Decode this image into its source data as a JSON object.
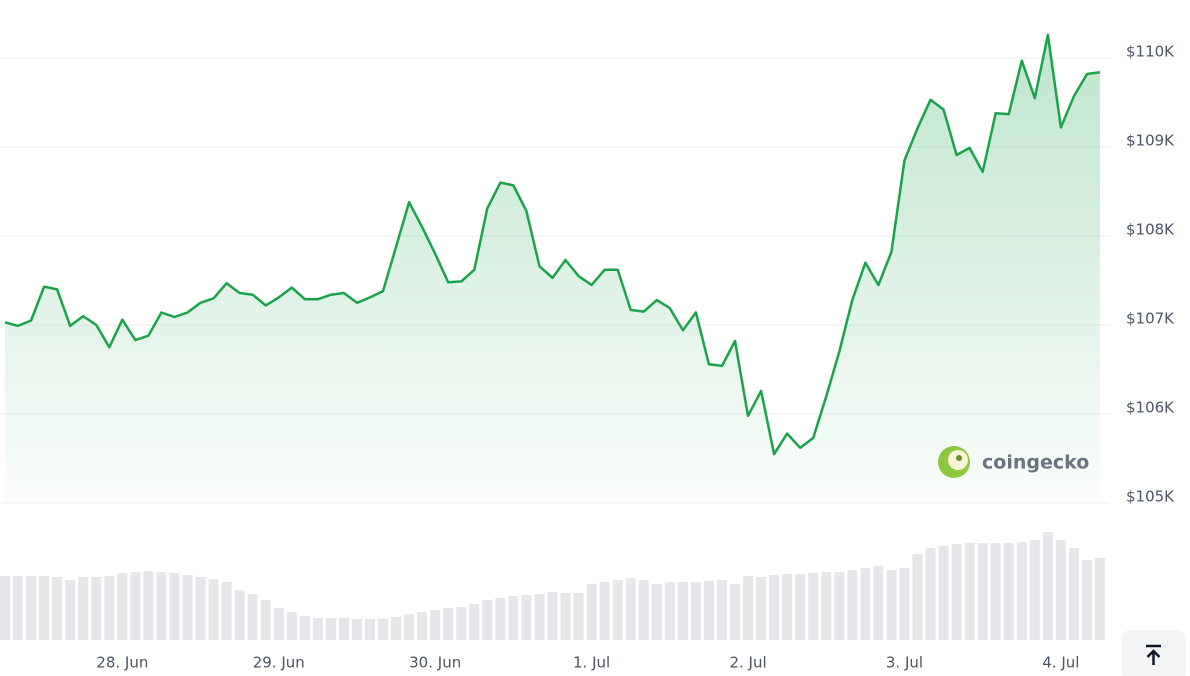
{
  "chart_data": [
    {
      "type": "line",
      "color": "#1aa34a",
      "grid": true,
      "ylim": [
        105000,
        110500
      ],
      "yticks": [
        {
          "value": 105000,
          "label": "$105K"
        },
        {
          "value": 106000,
          "label": "$106K"
        },
        {
          "value": 107000,
          "label": "$107K"
        },
        {
          "value": 108000,
          "label": "$108K"
        },
        {
          "value": 109000,
          "label": "$109K"
        },
        {
          "value": 110000,
          "label": "$110K"
        }
      ],
      "xlim": [
        0,
        84
      ],
      "xticks": [
        {
          "value": 9,
          "label": "28. Jun"
        },
        {
          "value": 21,
          "label": "29. Jun"
        },
        {
          "value": 33,
          "label": "30. Jun"
        },
        {
          "value": 45,
          "label": "1. Jul"
        },
        {
          "value": 57,
          "label": "2. Jul"
        },
        {
          "value": 69,
          "label": "3. Jul"
        },
        {
          "value": 81,
          "label": "4. Jul"
        }
      ],
      "values": [
        107030,
        106990,
        107050,
        107430,
        107400,
        106990,
        107100,
        107000,
        106750,
        107060,
        106830,
        106880,
        107140,
        107090,
        107140,
        107250,
        107300,
        107470,
        107360,
        107340,
        107220,
        107310,
        107420,
        107290,
        107290,
        107340,
        107360,
        107250,
        107310,
        107380,
        107880,
        108380,
        108100,
        107800,
        107480,
        107490,
        107620,
        108310,
        108600,
        108570,
        108280,
        107660,
        107530,
        107730,
        107550,
        107450,
        107620,
        107620,
        107170,
        107150,
        107280,
        107190,
        106940,
        107140,
        106560,
        106540,
        106820,
        105980,
        106260,
        105550,
        105780,
        105620,
        105730,
        106200,
        106700,
        107280,
        107700,
        107450,
        107820,
        108850,
        109210,
        109530,
        109420,
        108910,
        108990,
        108720,
        109380,
        109370,
        109970,
        109550,
        110260,
        109220,
        109570,
        109820,
        109840
      ]
    },
    {
      "type": "bar",
      "color": "#e6e7ea",
      "values": [
        64,
        64,
        64,
        64,
        63,
        60,
        63,
        63,
        64,
        67,
        68,
        69,
        68,
        67,
        65,
        63,
        61,
        58,
        50,
        46,
        40,
        32,
        28,
        24,
        22,
        22,
        22,
        21,
        21,
        21,
        23,
        26,
        28,
        30,
        32,
        33,
        36,
        40,
        42,
        44,
        45,
        46,
        48,
        47,
        47,
        56,
        58,
        60,
        62,
        60,
        56,
        58,
        58,
        58,
        59,
        60,
        56,
        64,
        63,
        65,
        66,
        66,
        67,
        68,
        68,
        70,
        72,
        74,
        70,
        72,
        86,
        92,
        94,
        96,
        97,
        97,
        97,
        97,
        98,
        100,
        108,
        100,
        92,
        80,
        82
      ]
    }
  ],
  "watermark": "coingecko"
}
